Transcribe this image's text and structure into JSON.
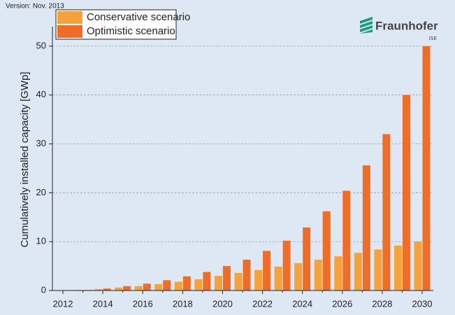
{
  "chart_data": {
    "type": "bar",
    "version_note": "Version: Nov. 2013",
    "logo": {
      "name": "Fraunhofer",
      "sub": "ISE"
    },
    "y_label": "Cumulatively installed capacity [GWp]",
    "categories": [
      "2012",
      null,
      "2014",
      null,
      "2016",
      null,
      "2018",
      null,
      "2020",
      null,
      "2022",
      null,
      "2024",
      null,
      "2026",
      null,
      "2028",
      null,
      "2030"
    ],
    "series": [
      {
        "name": "Conservative scenario",
        "color": "#f5a23c",
        "values": [
          0,
          0.1,
          0.3,
          0.6,
          0.9,
          1.3,
          1.8,
          2.3,
          3.0,
          3.6,
          4.2,
          4.9,
          5.6,
          6.3,
          7.0,
          7.7,
          8.4,
          9.2,
          10
        ]
      },
      {
        "name": "Optimistic scenario",
        "color": "#ee6d28",
        "values": [
          0,
          0.1,
          0.4,
          0.9,
          1.4,
          2.1,
          2.9,
          3.8,
          5.0,
          6.3,
          8.1,
          10.2,
          12.9,
          16.2,
          20.4,
          25.6,
          32.0,
          40.0,
          50
        ]
      }
    ],
    "ylim": [
      0,
      54
    ],
    "yticks": [
      0,
      10,
      20,
      30,
      40,
      50
    ],
    "grid": true,
    "legend": "upper left"
  }
}
